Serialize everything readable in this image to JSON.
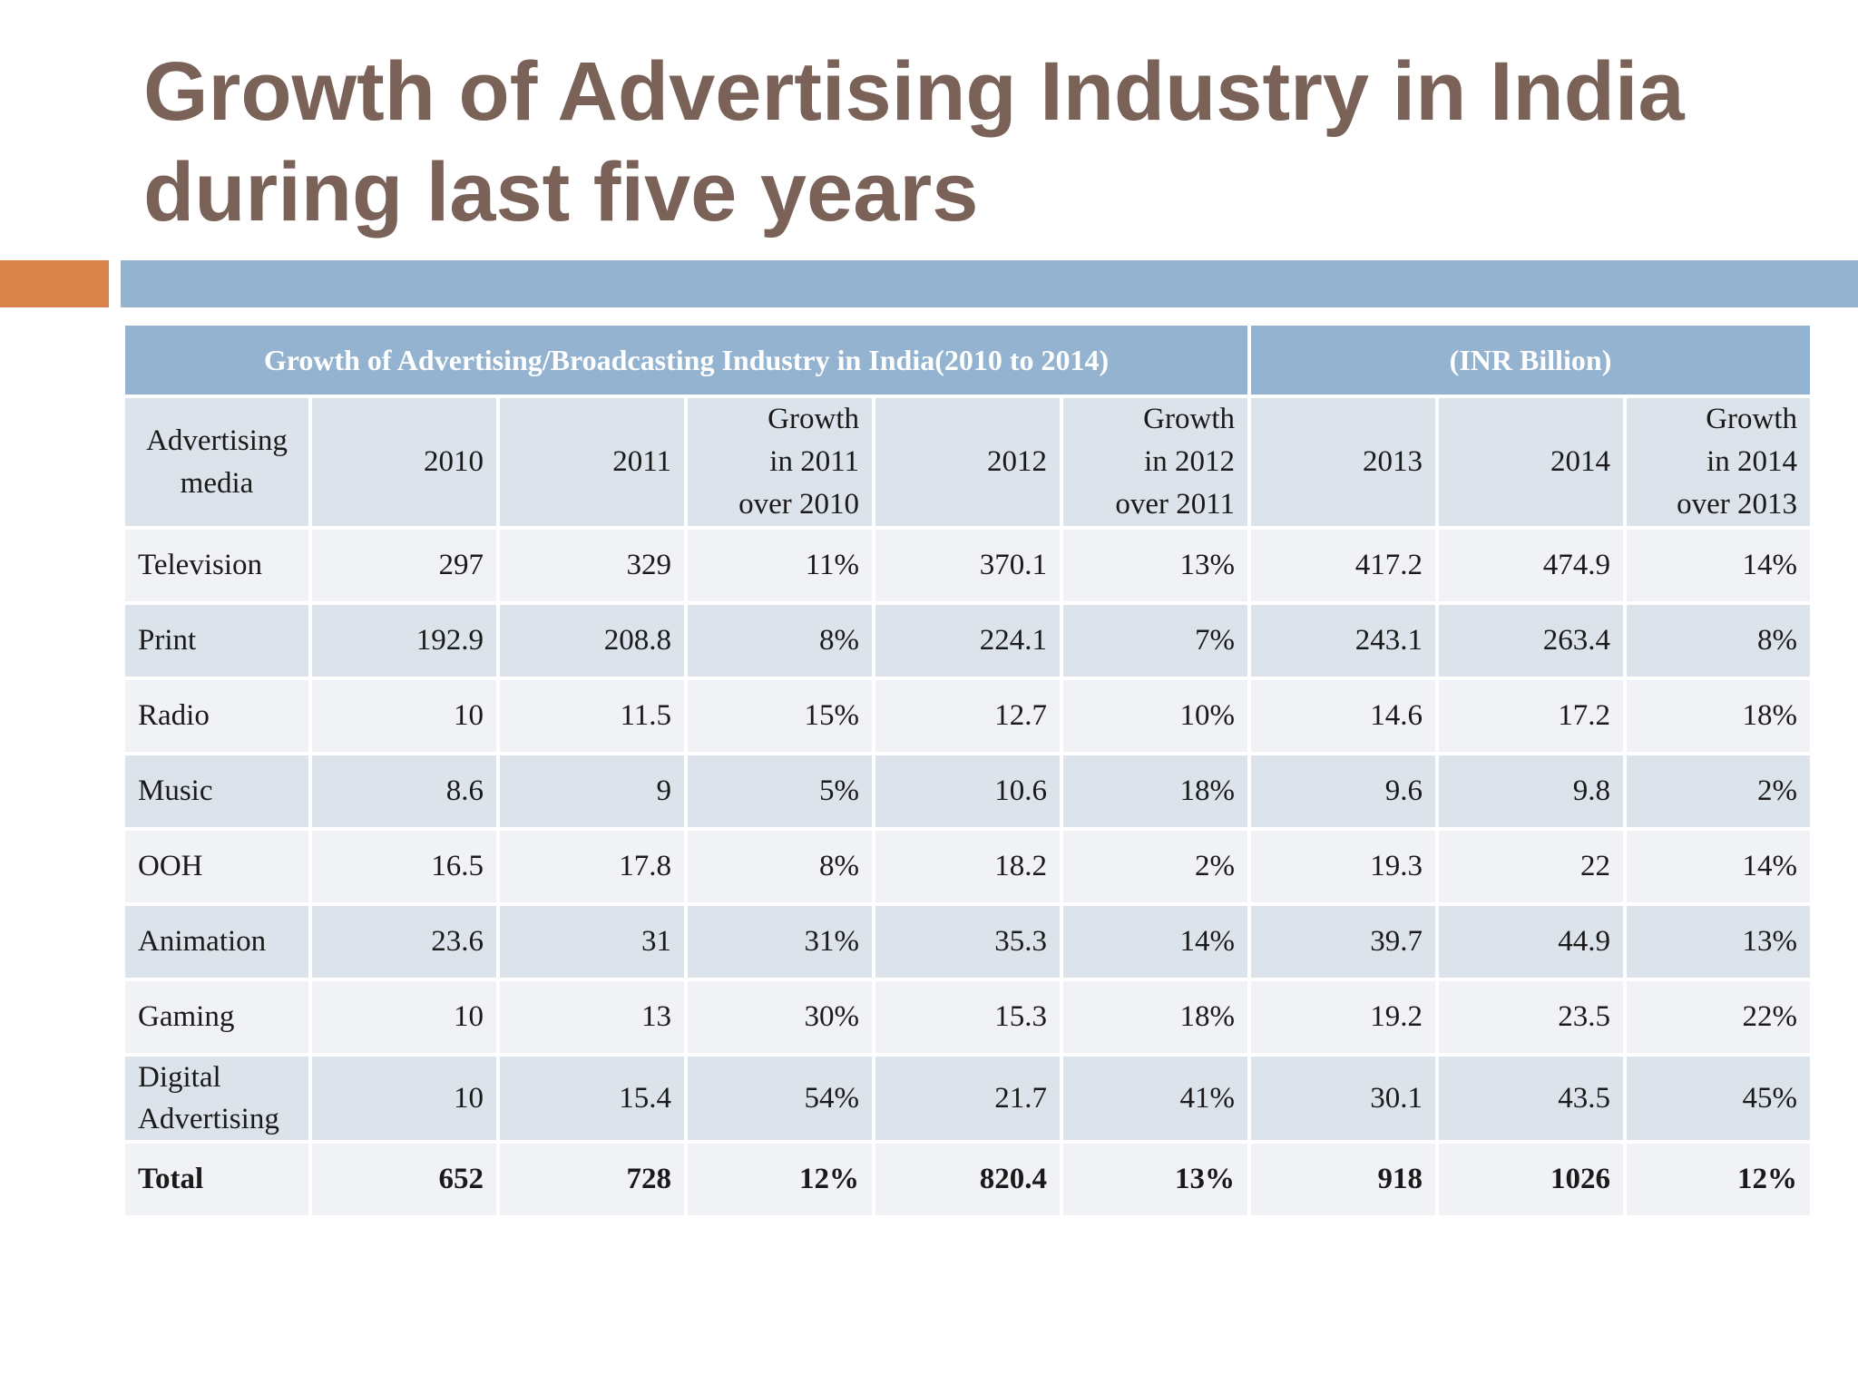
{
  "slide": {
    "title_line1": "Growth of Advertising Industry in India",
    "title_line2": "during last five years"
  },
  "table": {
    "caption": "Growth of Advertising/Broadcasting Industry in India(2010 to 2014)",
    "unit": "(INR Billion)",
    "headers": {
      "media_line1": "Advertising",
      "media_line2": "media",
      "y2010": "2010",
      "y2011": "2011",
      "g2011_line1": "Growth",
      "g2011_line2": "in 2011",
      "g2011_line3": "over 2010",
      "y2012": "2012",
      "g2012_line1": "Growth",
      "g2012_line2": "in 2012",
      "g2012_line3": "over 2011",
      "y2013": "2013",
      "y2014": "2014",
      "g2014_line1": "Growth",
      "g2014_line2": "in 2014",
      "g2014_line3": "over 2013"
    },
    "rows": [
      {
        "media": "Television",
        "y2010": "297",
        "y2011": "329",
        "g2011": "11%",
        "y2012": "370.1",
        "g2012": "13%",
        "y2013": "417.2",
        "y2014": "474.9",
        "g2014": "14%"
      },
      {
        "media": "Print",
        "y2010": "192.9",
        "y2011": "208.8",
        "g2011": "8%",
        "y2012": "224.1",
        "g2012": "7%",
        "y2013": "243.1",
        "y2014": "263.4",
        "g2014": "8%"
      },
      {
        "media": "Radio",
        "y2010": "10",
        "y2011": "11.5",
        "g2011": "15%",
        "y2012": "12.7",
        "g2012": "10%",
        "y2013": "14.6",
        "y2014": "17.2",
        "g2014": "18%"
      },
      {
        "media": "Music",
        "y2010": "8.6",
        "y2011": "9",
        "g2011": "5%",
        "y2012": "10.6",
        "g2012": "18%",
        "y2013": "9.6",
        "y2014": "9.8",
        "g2014": "2%"
      },
      {
        "media": "OOH",
        "y2010": "16.5",
        "y2011": "17.8",
        "g2011": "8%",
        "y2012": "18.2",
        "g2012": "2%",
        "y2013": "19.3",
        "y2014": "22",
        "g2014": "14%"
      },
      {
        "media": "Animation",
        "y2010": "23.6",
        "y2011": "31",
        "g2011": "31%",
        "y2012": "35.3",
        "g2012": "14%",
        "y2013": "39.7",
        "y2014": "44.9",
        "g2014": "13%"
      },
      {
        "media": "Gaming",
        "y2010": "10",
        "y2011": "13",
        "g2011": "30%",
        "y2012": "15.3",
        "g2012": "18%",
        "y2013": "19.2",
        "y2014": "23.5",
        "g2014": "22%"
      },
      {
        "media_line1": "Digital",
        "media_line2": "Advertising",
        "y2010": "10",
        "y2011": "15.4",
        "g2011": "54%",
        "y2012": "21.7",
        "g2012": "41%",
        "y2013": "30.1",
        "y2014": "43.5",
        "g2014": "45%"
      }
    ],
    "total": {
      "media": "Total",
      "y2010": "652",
      "y2011": "728",
      "g2011": "12%",
      "y2012": "820.4",
      "g2012": "13%",
      "y2013": "918",
      "y2014": "1026",
      "g2014": "12%"
    }
  }
}
